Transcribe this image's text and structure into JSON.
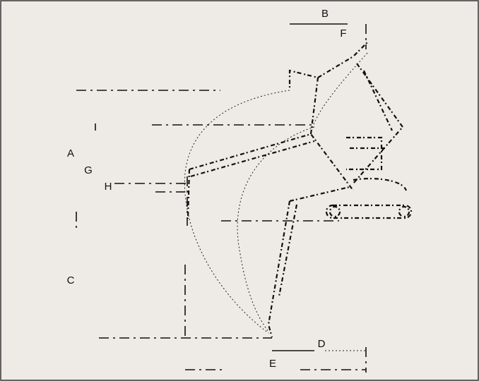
{
  "labels": [
    "B",
    "F",
    "A",
    "G",
    "H",
    "C",
    "D",
    "E"
  ]
}
